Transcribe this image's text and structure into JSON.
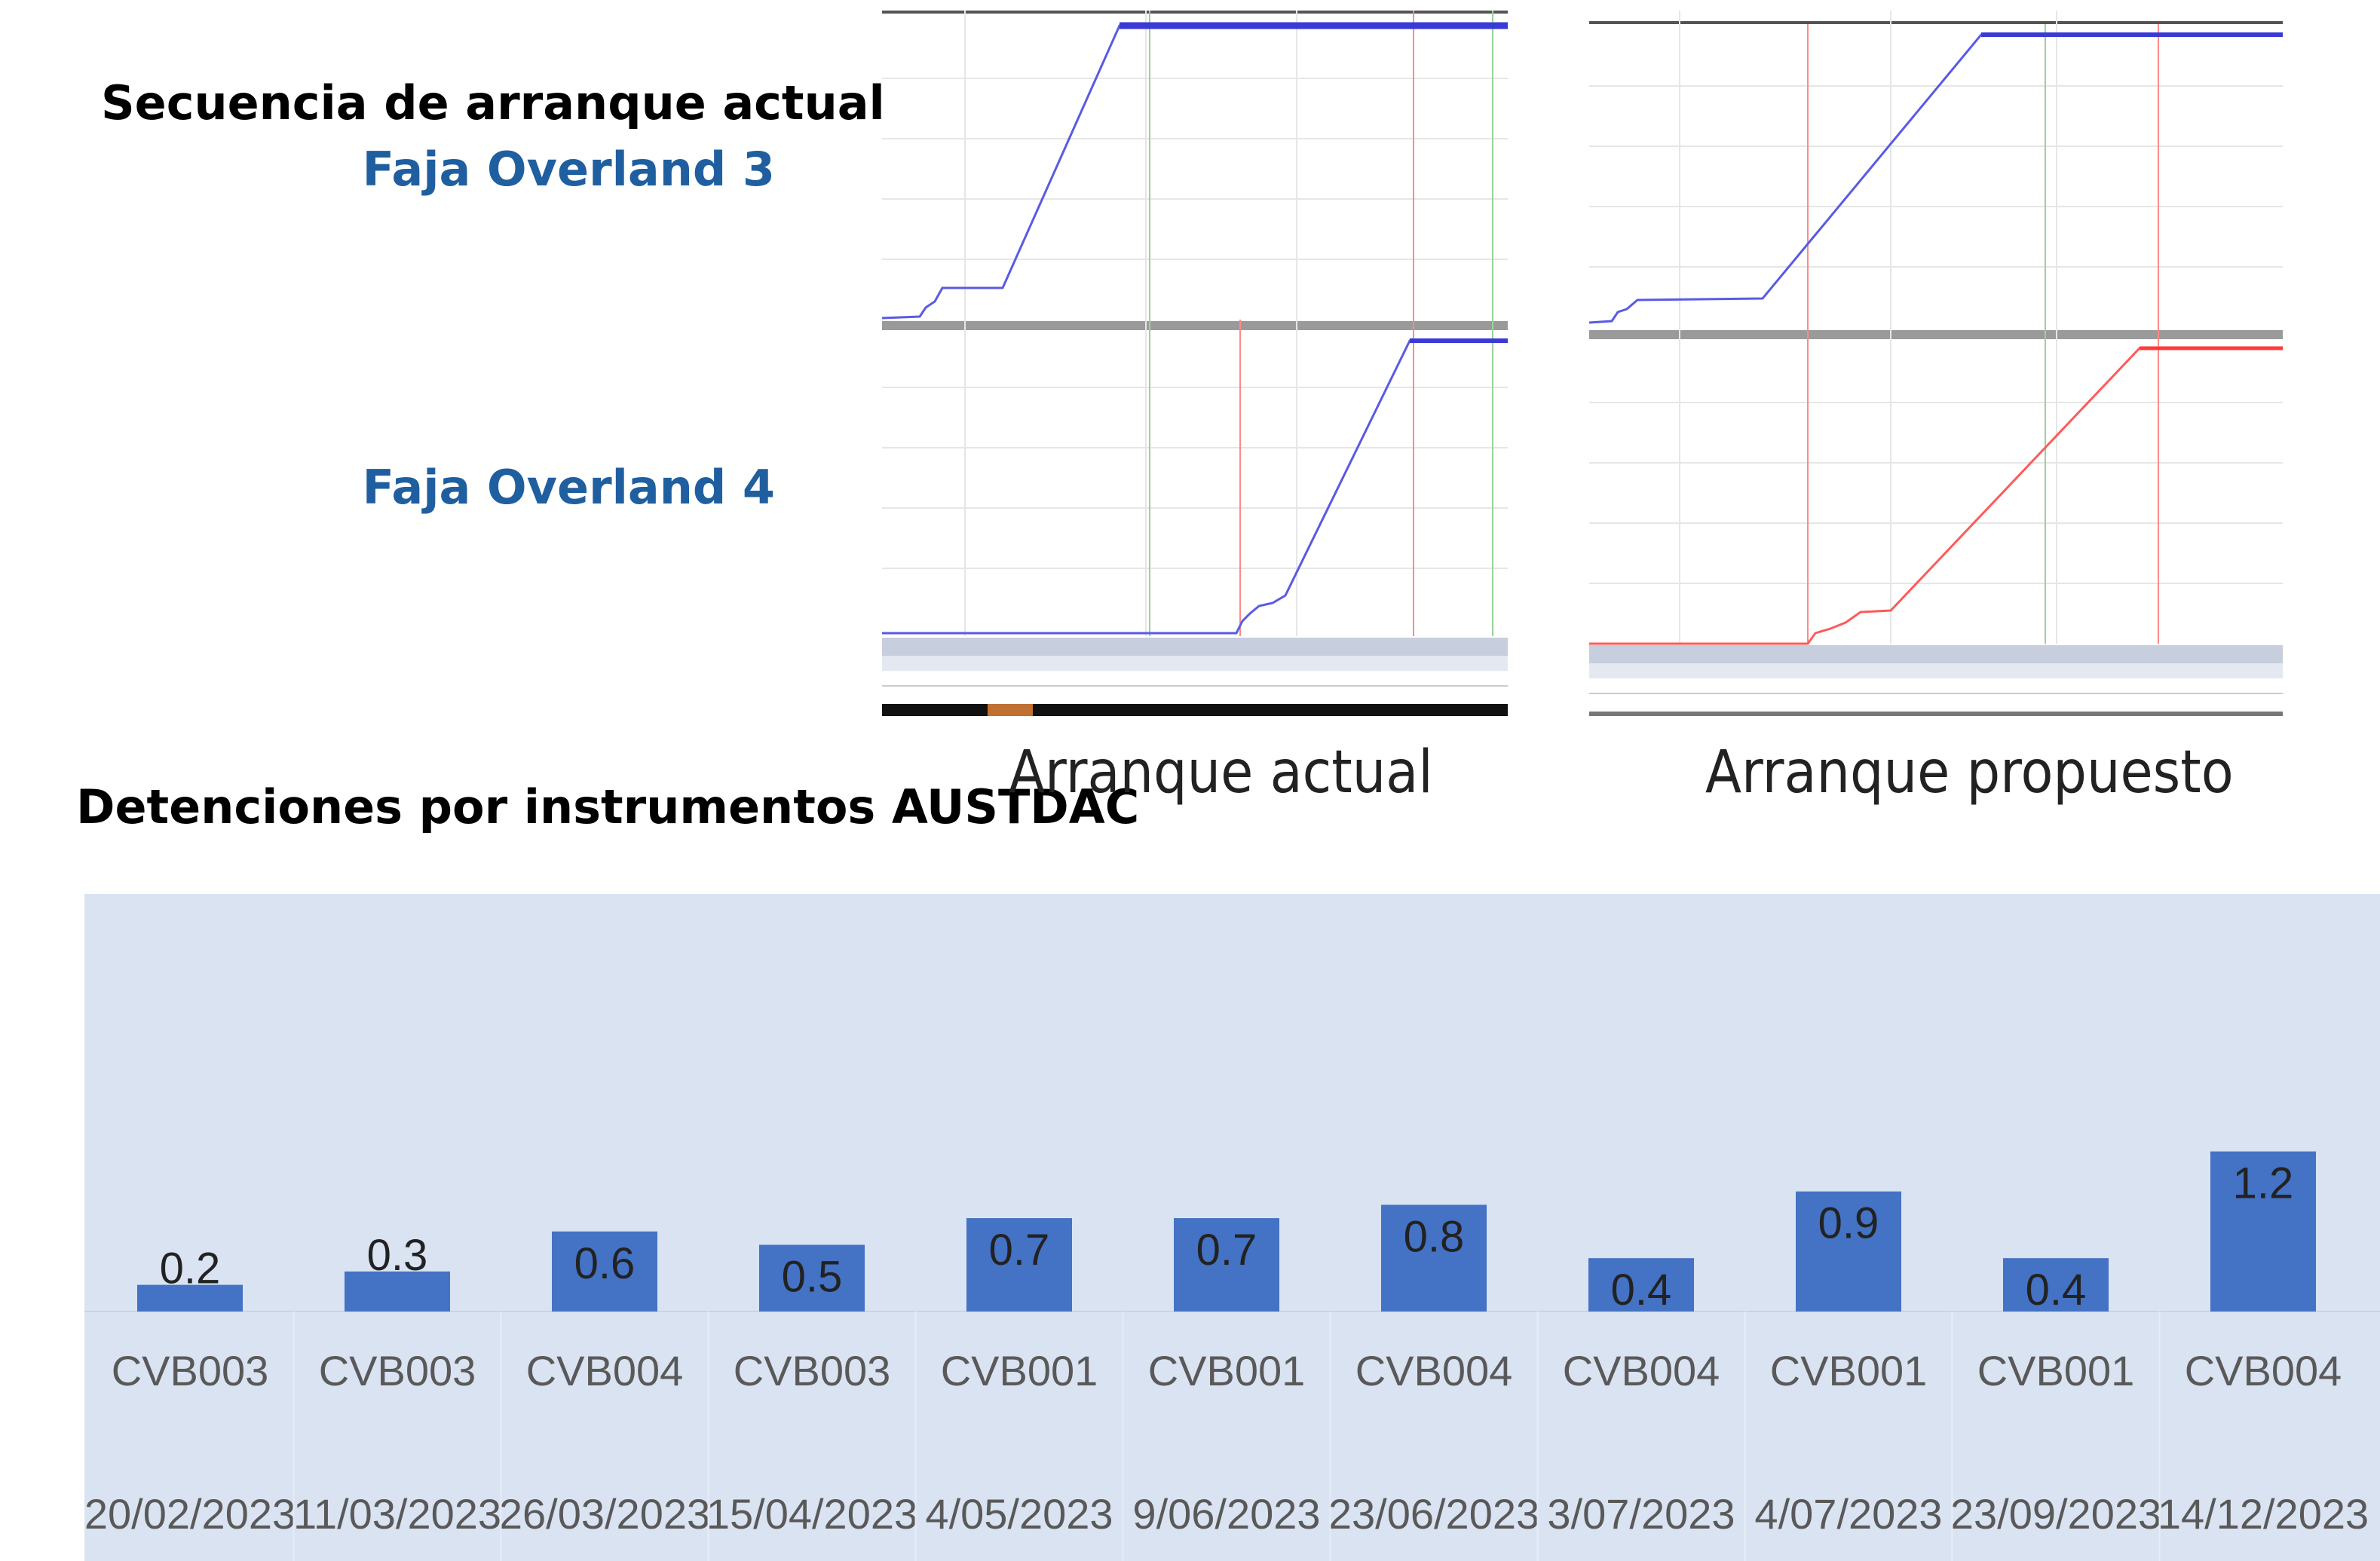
{
  "labels": {
    "secuencia": "Secuencia de arranque actual",
    "overland3": "Faja Overland 3",
    "overland4": "Faja Overland 4",
    "detenciones": "Detenciones  por instrumentos AUSTDAC",
    "caption_actual": "Arranque actual",
    "caption_propuesto": "Arranque propuesto"
  },
  "colors": {
    "label_blue": "#1f5fa0",
    "bar": "#4472c4",
    "trend_blue": "#5a5ae6",
    "trend_red": "#ff5a5a",
    "panel_bg": "#dae3f2"
  },
  "chart_data": {
    "type": "bar",
    "title": "",
    "categories": [
      "CVB003",
      "CVB003",
      "CVB004",
      "CVB003",
      "CVB001",
      "CVB001",
      "CVB004",
      "CVB004",
      "CVB001",
      "CVB001",
      "CVB004"
    ],
    "dates": [
      "20/02/2023",
      "11/03/2023",
      "26/03/2023",
      "15/04/2023",
      "4/05/2023",
      "9/06/2023",
      "23/06/2023",
      "3/07/2023",
      "4/07/2023",
      "23/09/2023",
      "14/12/2023"
    ],
    "values": [
      0.2,
      0.3,
      0.6,
      0.5,
      0.7,
      0.7,
      0.8,
      0.4,
      0.9,
      0.4,
      1.2
    ],
    "ylim": [
      0,
      3.0
    ],
    "grid": false,
    "legend": "none"
  }
}
